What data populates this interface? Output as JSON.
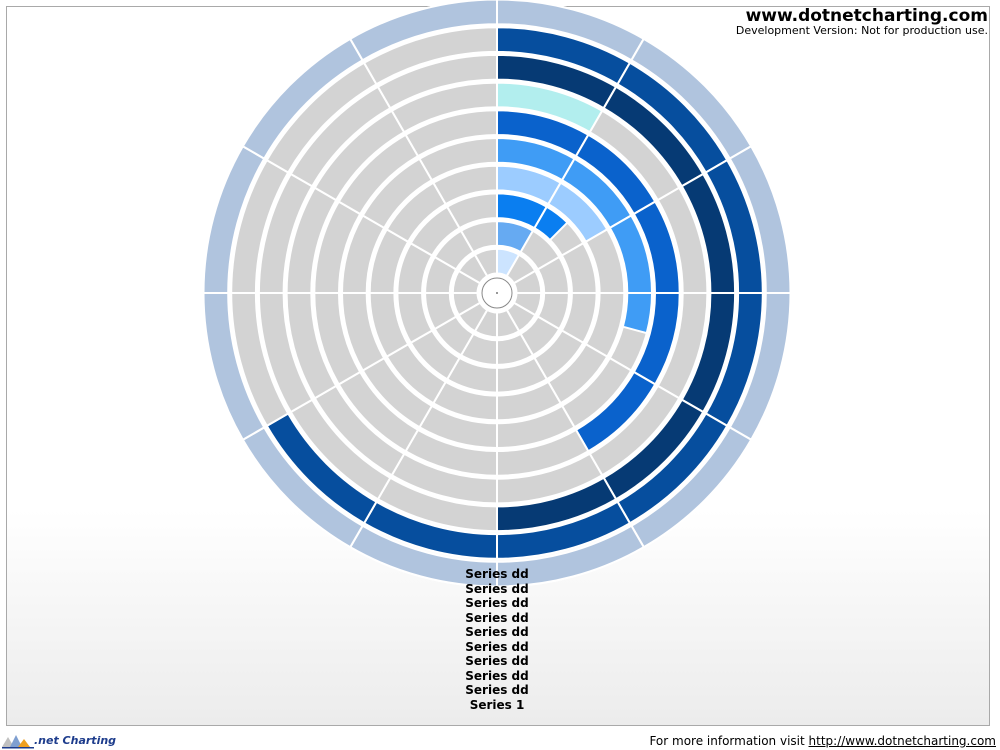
{
  "header": {
    "site_title": "www.dotnetcharting.com",
    "dev_notice": "Development Version: Not for production use."
  },
  "footer": {
    "logo_text": ".net Charting",
    "info_text": "For more information visit ",
    "info_link": "http://www.dotnetcharting.com"
  },
  "chart_data": {
    "type": "radial-bar",
    "segments_per_ring": 12,
    "ring_count": 10,
    "background_color": "#d3d3d3",
    "legend": [
      "Series dd",
      "Series dd",
      "Series dd",
      "Series dd",
      "Series dd",
      "Series dd",
      "Series dd",
      "Series dd",
      "Series dd",
      "Series 1"
    ],
    "series": [
      {
        "label": "Series dd",
        "value": 1,
        "color": "#cce4ff"
      },
      {
        "label": "Series dd",
        "value": 1,
        "color": "#66aaf2"
      },
      {
        "label": "Series dd",
        "value": 1.5,
        "color": "#0a7ef0"
      },
      {
        "label": "Series dd",
        "value": 2,
        "color": "#9cccff"
      },
      {
        "label": "Series dd",
        "value": 3.5,
        "color": "#3f9cf5"
      },
      {
        "label": "Series dd",
        "value": 5,
        "color": "#0a62cc"
      },
      {
        "label": "Series dd",
        "value": 1,
        "color": "#b2eeee"
      },
      {
        "label": "Series dd",
        "value": 6,
        "color": "#063a74"
      },
      {
        "label": "Series dd",
        "value": 8,
        "color": "#064e9e"
      },
      {
        "label": "Series 1",
        "value": 12,
        "color": "#b0c4de"
      }
    ]
  }
}
